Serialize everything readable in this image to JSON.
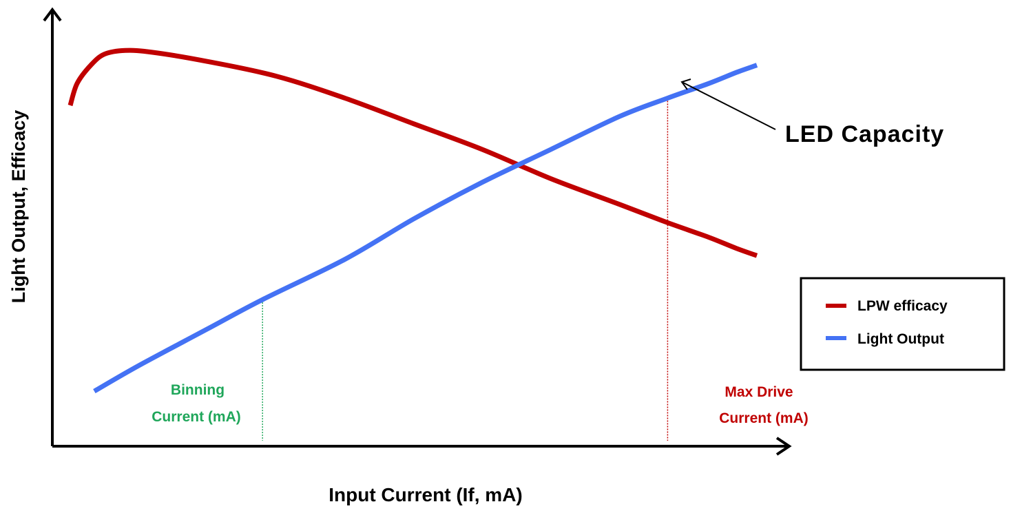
{
  "chart_data": {
    "type": "line",
    "ylabel": "Light Output, Efficacy",
    "xlabel": "Input Current (If, mA)",
    "x_ticks": "none",
    "y_ticks": "none",
    "grid": false,
    "legend_position": "right",
    "series": [
      {
        "name": "LPW efficacy",
        "color": "#c00000",
        "points": [
          [
            0.0,
            0.84
          ],
          [
            0.01,
            0.9
          ],
          [
            0.03,
            0.95
          ],
          [
            0.05,
            0.98
          ],
          [
            0.08,
            0.99
          ],
          [
            0.12,
            0.985
          ],
          [
            0.2,
            0.96
          ],
          [
            0.3,
            0.92
          ],
          [
            0.4,
            0.86
          ],
          [
            0.5,
            0.79
          ],
          [
            0.6,
            0.72
          ],
          [
            0.7,
            0.64
          ],
          [
            0.8,
            0.57
          ],
          [
            0.87,
            0.52
          ],
          [
            0.93,
            0.48
          ],
          [
            0.97,
            0.45
          ],
          [
            1.0,
            0.43
          ]
        ]
      },
      {
        "name": "Light Output",
        "color": "#4472f4",
        "points": [
          [
            0.035,
            0.06
          ],
          [
            0.1,
            0.13
          ],
          [
            0.2,
            0.23
          ],
          [
            0.28,
            0.31
          ],
          [
            0.4,
            0.42
          ],
          [
            0.5,
            0.53
          ],
          [
            0.6,
            0.63
          ],
          [
            0.7,
            0.72
          ],
          [
            0.8,
            0.81
          ],
          [
            0.87,
            0.86
          ],
          [
            0.93,
            0.9
          ],
          [
            0.97,
            0.93
          ],
          [
            1.0,
            0.95
          ]
        ]
      }
    ],
    "markers": [
      {
        "id": "binning",
        "x": 0.28,
        "color": "#1fa65a",
        "label_lines": [
          "Binning",
          "Current (mA)"
        ]
      },
      {
        "id": "max-drive",
        "x": 0.87,
        "color": "#c00000",
        "label_lines": [
          "Max Drive",
          "Current (mA)"
        ]
      }
    ],
    "annotation": {
      "text": "LED Capacity",
      "target_series": "Light Output",
      "target_x": 0.87
    }
  }
}
